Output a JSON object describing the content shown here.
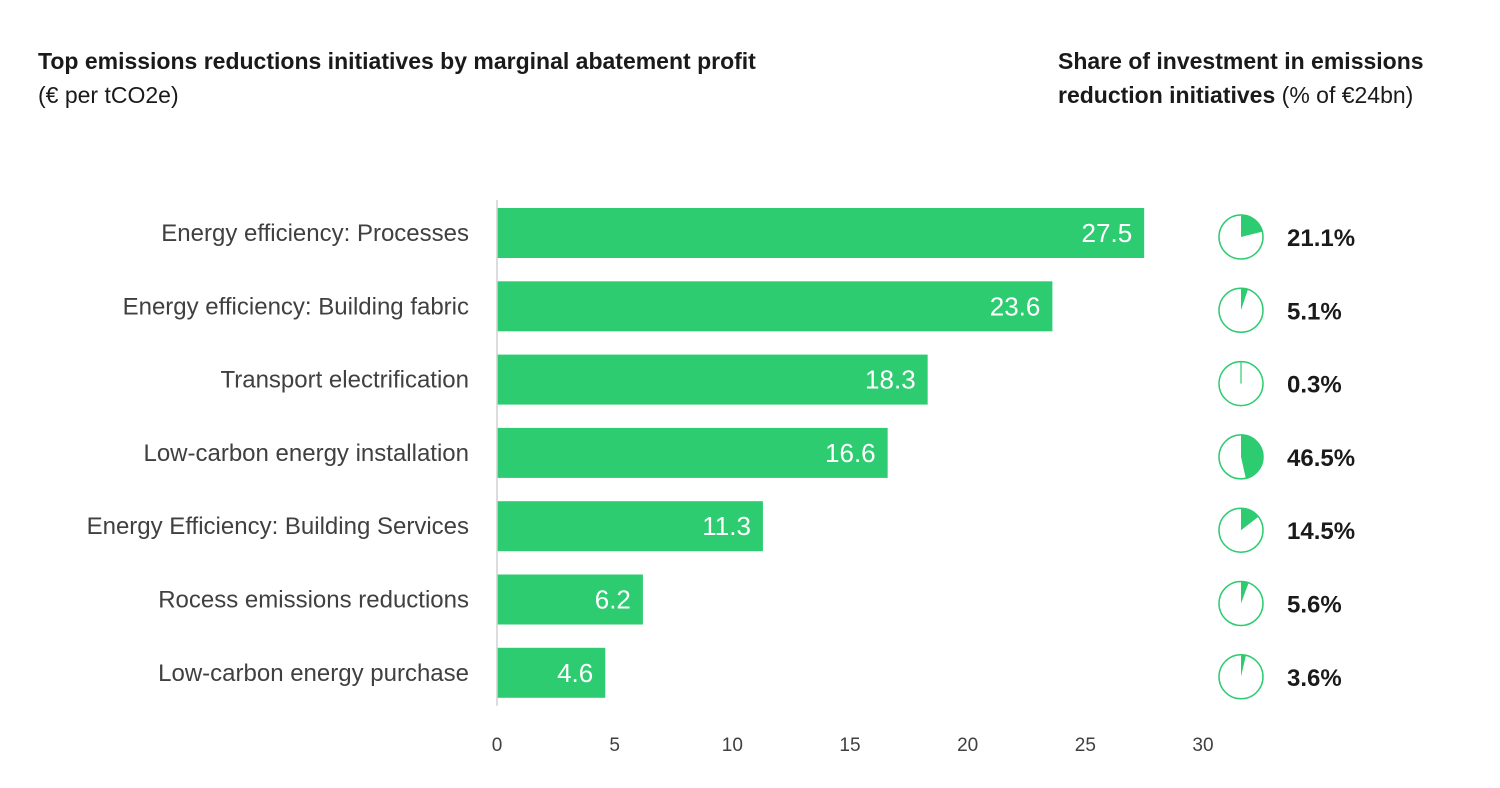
{
  "header": {
    "left_title": "Top emissions reductions initiatives by marginal abatement profit",
    "left_subtitle": "(€ per tCO2e)",
    "right_title_bold": "Share of investment in emissions reduction initiatives",
    "right_title_regular": "(% of €24bn)"
  },
  "colors": {
    "bar": "#2ecc71",
    "pie": "#2ecc71",
    "axis": "#d0d0d0"
  },
  "chart_data": [
    {
      "type": "bar",
      "orientation": "horizontal",
      "title": "Top emissions reductions initiatives by marginal abatement profit",
      "subtitle": "(€ per tCO2e)",
      "categories": [
        "Energy efficiency: Processes",
        "Energy efficiency: Building fabric",
        "Transport electrification",
        "Low-carbon energy installation",
        "Energy Efficiency: Building Services",
        "Rocess emissions reductions",
        "Low-carbon energy purchase"
      ],
      "values": [
        27.5,
        23.6,
        18.3,
        16.6,
        11.3,
        6.2,
        4.6
      ],
      "value_labels": [
        "27.5",
        "23.6",
        "18.3",
        "16.6",
        "11.3",
        "6.2",
        "4.6"
      ],
      "xlim": [
        0,
        30
      ],
      "xticks": [
        0,
        5,
        10,
        15,
        20,
        25,
        30
      ],
      "grid": false
    },
    {
      "type": "pie",
      "title": "Share of investment in emissions reduction initiatives (% of €24bn)",
      "categories": [
        "Energy efficiency: Processes",
        "Energy efficiency: Building fabric",
        "Transport electrification",
        "Low-carbon energy installation",
        "Energy Efficiency: Building Services",
        "Rocess emissions reductions",
        "Low-carbon energy purchase"
      ],
      "values": [
        21.1,
        5.1,
        0.3,
        46.5,
        14.5,
        5.6,
        3.6
      ],
      "value_labels": [
        "21.1%",
        "5.1%",
        "0.3%",
        "46.5%",
        "14.5%",
        "5.6%",
        "3.6%"
      ]
    }
  ]
}
